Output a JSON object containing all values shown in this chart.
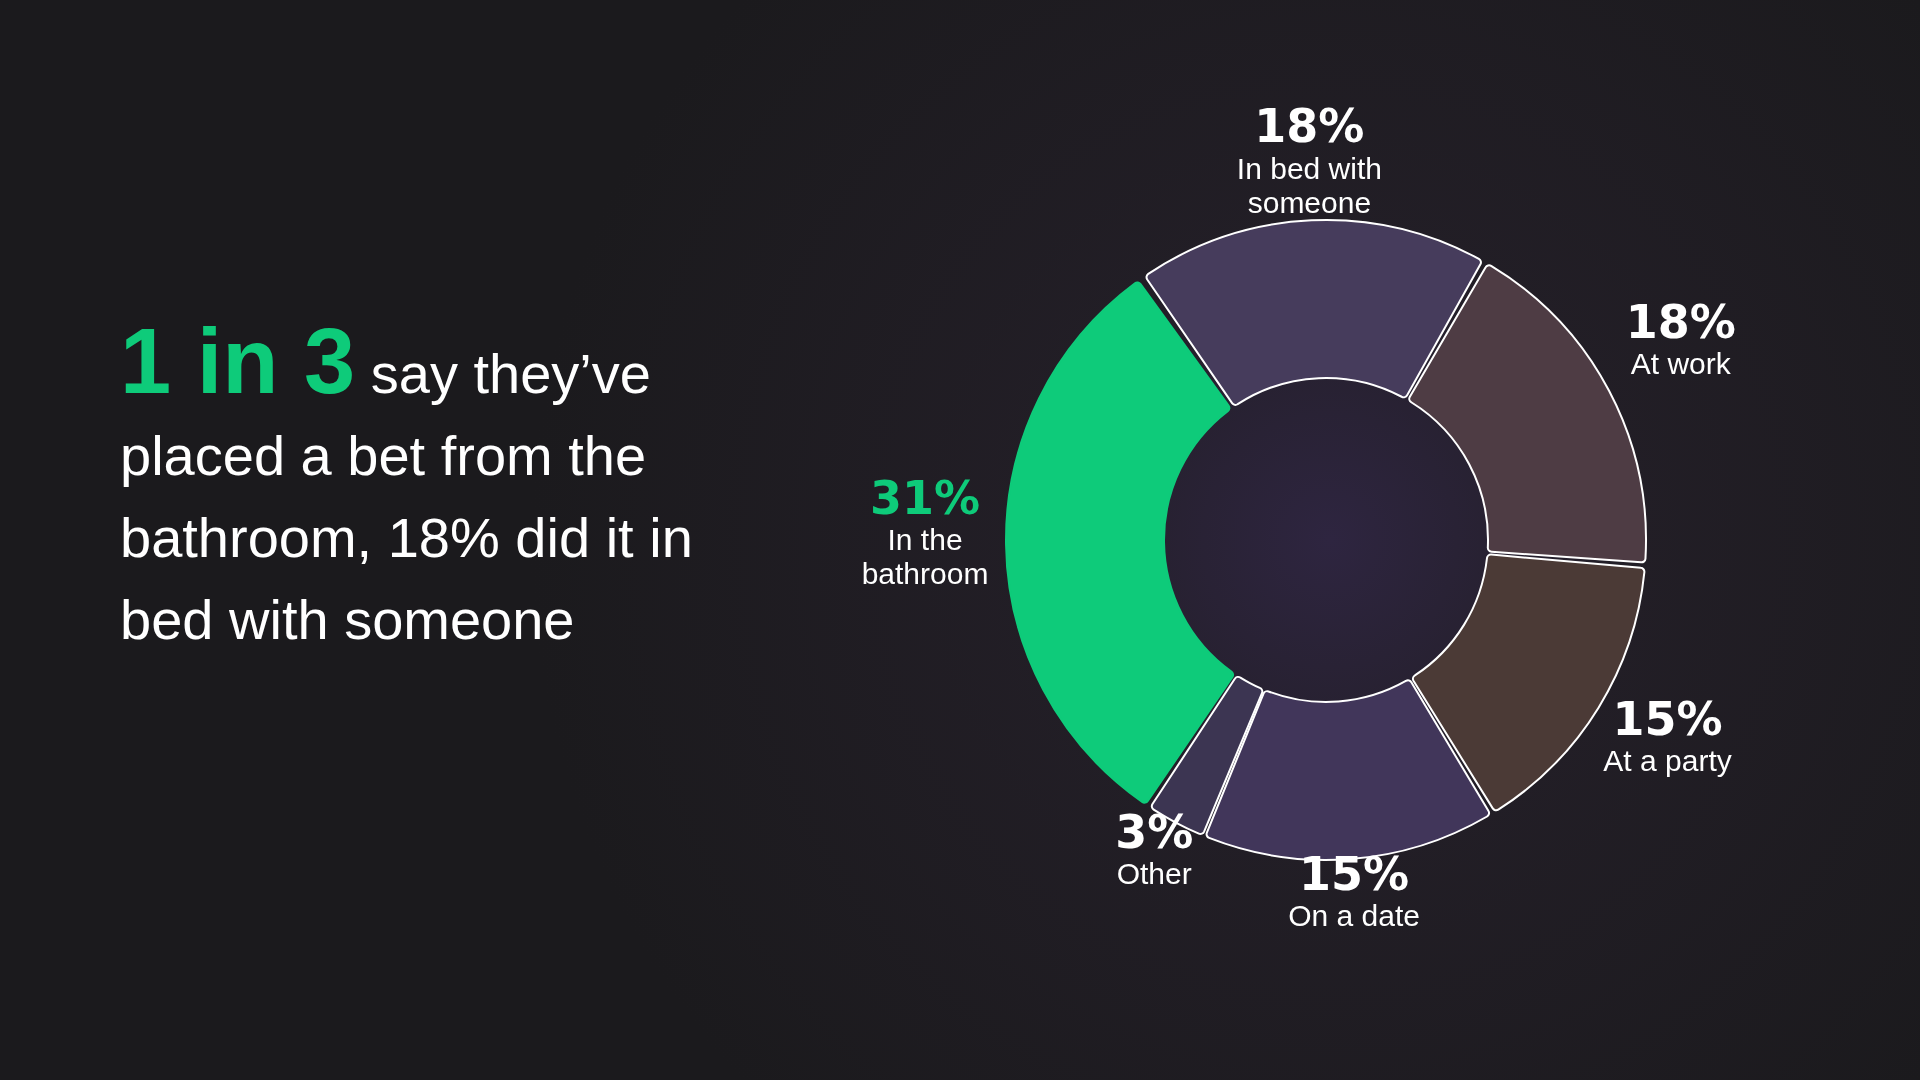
{
  "chart_data": {
    "type": "donut",
    "title": "1 in 3",
    "subtitle": "say they’ve placed a bet from the bathroom, 18% did it in bed with someone",
    "categories": [
      "In bed with someone",
      "At work",
      "At a party",
      "On a date",
      "Other",
      "In the bathroom"
    ],
    "values": [
      18,
      18,
      15,
      15,
      3,
      31
    ],
    "colors": [
      "#463c5c",
      "#4e3c44",
      "#4b3a36",
      "#41365a",
      "#3c3552",
      "#0ecb7a"
    ],
    "value_labels": [
      "18%",
      "18%",
      "15%",
      "15%",
      "3%",
      "31%"
    ],
    "legend": false
  }
}
